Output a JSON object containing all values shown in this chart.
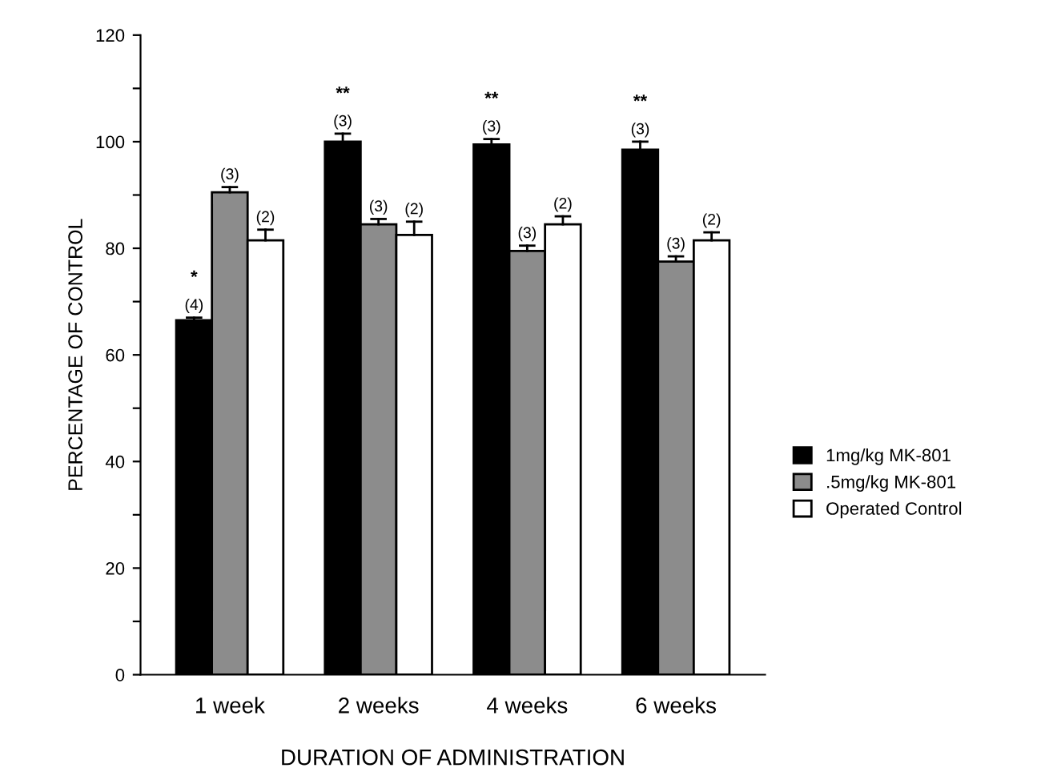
{
  "chart_data": {
    "type": "bar",
    "xlabel": "DURATION OF ADMINISTRATION",
    "ylabel": "PERCENTAGE OF CONTROL",
    "categories": [
      "1 week",
      "2 weeks",
      "4 weeks",
      "6 weeks"
    ],
    "series": [
      {
        "name": "1mg/kg MK-801",
        "color": "#000000",
        "values": [
          66.5,
          100,
          99.5,
          98.5
        ],
        "errors": [
          [
            66.5,
            67
          ],
          [
            100,
            101.5
          ],
          [
            99.5,
            100.5
          ],
          [
            98.5,
            100
          ]
        ]
      },
      {
        "name": ".5mg/kg MK-801",
        "color": "#8c8c8c",
        "values": [
          90.5,
          84.5,
          79.5,
          77.5
        ],
        "errors": [
          [
            90.5,
            91.5
          ],
          [
            84.5,
            85.5
          ],
          [
            79.5,
            80.5
          ],
          [
            77.5,
            78.5
          ]
        ]
      },
      {
        "name": "Operated Control",
        "color": "#ffffff",
        "values": [
          81.5,
          82.5,
          84.5,
          81.5
        ],
        "errors": [
          [
            81.5,
            83.5
          ],
          [
            82.5,
            85
          ],
          [
            84.5,
            86
          ],
          [
            81.5,
            83
          ]
        ]
      }
    ],
    "annotations": [
      "(4)",
      "(3)",
      "(3)",
      "(3)",
      "(3)",
      "(3)",
      "(3)",
      "(3)",
      "(2)",
      "(2)",
      "(2)",
      "(2)",
      "*",
      "**",
      "**",
      "**"
    ],
    "ylim": [
      0,
      120
    ],
    "yticks": [
      0,
      {
        "value": 10,
        "label": null
      },
      20,
      {
        "value": 30,
        "label": null
      },
      40,
      {
        "value": 50,
        "label": null
      },
      60,
      {
        "value": 70,
        "label": null
      },
      80,
      {
        "value": 90,
        "label": null
      },
      100,
      {
        "value": 110,
        "label": null
      },
      120
    ],
    "grid": false,
    "legend": "right"
  }
}
